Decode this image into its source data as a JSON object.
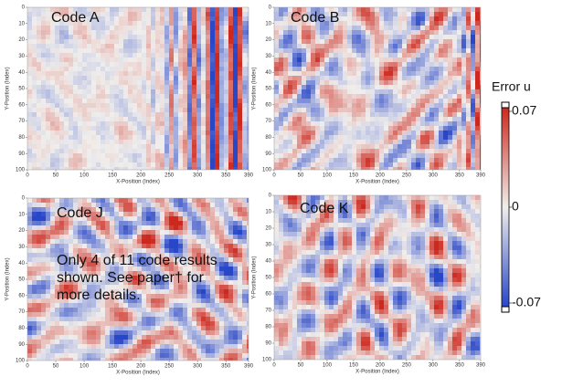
{
  "panels": [
    {
      "label": "Code A",
      "xlabel": "X-Position (Index)",
      "ylabel": "Y-Position (Index)",
      "xticks": [
        0,
        50,
        100,
        150,
        200,
        250,
        300,
        350,
        390
      ],
      "yticks": [
        0,
        10,
        20,
        30,
        40,
        50,
        60,
        70,
        80,
        90,
        100
      ]
    },
    {
      "label": "Code B",
      "xlabel": "X-Position (Index)",
      "ylabel": "Y-Position (Index)",
      "xticks": [
        0,
        50,
        100,
        150,
        200,
        250,
        300,
        350,
        390
      ],
      "yticks": [
        0,
        10,
        20,
        30,
        40,
        50,
        60,
        70,
        80,
        90,
        100
      ]
    },
    {
      "label": "Code J",
      "xlabel": "X-Position (Index)",
      "ylabel": "Y-Position (Index)",
      "xticks": [
        0,
        50,
        100,
        150,
        200,
        250,
        300,
        350,
        390
      ],
      "yticks": [
        0,
        10,
        20,
        30,
        40,
        50,
        60,
        70,
        80,
        90,
        100
      ]
    },
    {
      "label": "Code K",
      "xlabel": "X-Position (Index)",
      "ylabel": "Y-Position (Index)",
      "xticks": [
        0,
        50,
        100,
        150,
        200,
        250,
        300,
        350,
        390
      ],
      "yticks": [
        0,
        10,
        20,
        30,
        40,
        50,
        60,
        70,
        80,
        90,
        100
      ]
    }
  ],
  "colorbar": {
    "title": "Error u",
    "ticks": [
      0.07,
      0,
      -0.07
    ]
  },
  "note": "Only 4 of 11 code results shown. See paper† for more details."
}
